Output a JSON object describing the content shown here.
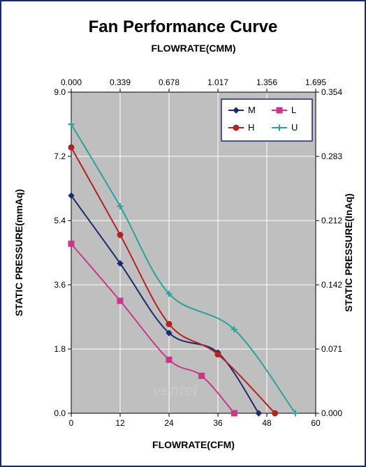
{
  "chart": {
    "type": "line",
    "title": "Fan Performance Curve",
    "title_fontsize": 24,
    "title_color": "#000000",
    "xlabel_bottom": "FLOWRATE(CFM)",
    "xlabel_top": "FLOWRATE(CMM)",
    "ylabel_left": "STATIC PRESSURE(mmAq)",
    "ylabel_right": "STATIC PRESSURE(InAq)",
    "label_fontsize": 14,
    "label_color": "#000000",
    "tick_fontsize": 12,
    "tick_color": "#000000",
    "background_color": "#ffffff",
    "plot_background_color": "#bfbfbf",
    "grid_color": "#ffffff",
    "border_color": "#1a2b6b",
    "x_bottom": {
      "min": 0,
      "max": 60,
      "step": 12,
      "ticks": [
        0,
        12,
        24,
        36,
        48,
        60
      ]
    },
    "x_top": {
      "min": 0.0,
      "max": 1.695,
      "step": 0.339,
      "ticks": [
        0.0,
        0.339,
        0.678,
        1.017,
        1.356,
        1.695
      ]
    },
    "y_left": {
      "min": 0.0,
      "max": 9.0,
      "step": 1.8,
      "ticks": [
        0.0,
        1.8,
        3.6,
        5.4,
        7.2,
        9.0
      ]
    },
    "y_right": {
      "min": 0.0,
      "max": 0.354,
      "step": 0.071,
      "ticks": [
        0.0,
        0.071,
        0.142,
        0.212,
        0.283,
        0.354
      ]
    },
    "legend": {
      "border_color": "#1a2b6b",
      "background": "#ffffff",
      "fontsize": 13
    },
    "series": [
      {
        "name": "M",
        "color": "#1a2b6b",
        "marker": "diamond",
        "marker_size": 8,
        "line_width": 2,
        "data": [
          {
            "x": 0,
            "y": 6.1
          },
          {
            "x": 12,
            "y": 4.2
          },
          {
            "x": 24,
            "y": 2.25
          },
          {
            "x": 36,
            "y": 1.7
          },
          {
            "x": 46,
            "y": 0.0
          }
        ]
      },
      {
        "name": "L",
        "color": "#c9378c",
        "marker": "square",
        "marker_size": 8,
        "line_width": 2,
        "data": [
          {
            "x": 0,
            "y": 4.75
          },
          {
            "x": 12,
            "y": 3.15
          },
          {
            "x": 24,
            "y": 1.5
          },
          {
            "x": 32,
            "y": 1.05
          },
          {
            "x": 40,
            "y": 0.0
          }
        ]
      },
      {
        "name": "H",
        "color": "#b22222",
        "marker": "circle",
        "marker_size": 8,
        "line_width": 2,
        "data": [
          {
            "x": 0,
            "y": 7.45
          },
          {
            "x": 12,
            "y": 5.0
          },
          {
            "x": 24,
            "y": 2.5
          },
          {
            "x": 36,
            "y": 1.65
          },
          {
            "x": 50,
            "y": 0.0
          }
        ]
      },
      {
        "name": "U",
        "color": "#2aa39a",
        "marker": "plus",
        "marker_size": 9,
        "line_width": 2,
        "data": [
          {
            "x": 0,
            "y": 8.1
          },
          {
            "x": 12,
            "y": 5.8
          },
          {
            "x": 24,
            "y": 3.35
          },
          {
            "x": 40,
            "y": 2.35
          },
          {
            "x": 55,
            "y": 0.0
          }
        ]
      }
    ],
    "watermark": {
      "text": "ventel",
      "color": "#cfcfcf",
      "fontsize": 22
    }
  }
}
